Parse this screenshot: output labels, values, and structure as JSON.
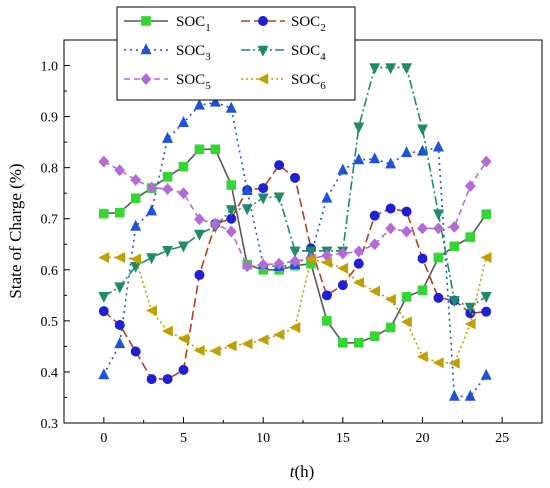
{
  "chart_data": {
    "type": "line",
    "xlabel": "t(h)",
    "ylabel": "State of Charge (%)",
    "xlim": [
      -2.5,
      27.5
    ],
    "ylim": [
      0.3,
      1.05
    ],
    "xticks": [
      0,
      5,
      10,
      15,
      20,
      25
    ],
    "yticks": [
      0.3,
      0.4,
      0.5,
      0.6,
      0.7,
      0.8,
      0.9,
      1.0
    ],
    "grid": false,
    "legend_position": "top-left",
    "x": [
      0,
      1,
      2,
      3,
      4,
      5,
      6,
      7,
      8,
      9,
      10,
      11,
      12,
      13,
      14,
      15,
      16,
      17,
      18,
      19,
      20,
      21,
      22,
      23,
      24
    ],
    "series": [
      {
        "name": "SOC1",
        "label_base": "SOC",
        "label_sub": "1",
        "color": "#595959",
        "marker_color": "#33d633",
        "marker": "square",
        "dash": "solid",
        "values": [
          0.71,
          0.712,
          0.74,
          0.76,
          0.782,
          0.802,
          0.836,
          0.836,
          0.766,
          0.61,
          0.6,
          0.6,
          0.608,
          0.612,
          0.5,
          0.457,
          0.457,
          0.47,
          0.487,
          0.547,
          0.56,
          0.624,
          0.646,
          0.664,
          0.709
        ]
      },
      {
        "name": "SOC2",
        "label_base": "SOC",
        "label_sub": "2",
        "color": "#b04020",
        "marker_color": "#1f1fd6",
        "marker": "circle",
        "dash": "longdash",
        "values": [
          0.519,
          0.492,
          0.44,
          0.386,
          0.386,
          0.404,
          0.59,
          0.69,
          0.7,
          0.756,
          0.76,
          0.805,
          0.78,
          0.642,
          0.55,
          0.57,
          0.612,
          0.706,
          0.72,
          0.714,
          0.622,
          0.545,
          0.54,
          0.515,
          0.518
        ]
      },
      {
        "name": "SOC3",
        "label_base": "SOC",
        "label_sub": "3",
        "color": "#1f52d6",
        "marker_color": "#1f52d6",
        "marker": "triangle-up",
        "dash": "dot",
        "values": [
          0.394,
          0.455,
          0.685,
          0.715,
          0.857,
          0.888,
          0.922,
          0.928,
          0.916,
          0.755,
          0.61,
          0.606,
          0.61,
          0.629,
          0.74,
          0.795,
          0.815,
          0.817,
          0.807,
          0.829,
          0.832,
          0.84,
          0.352,
          0.352,
          0.393
        ]
      },
      {
        "name": "SOC4",
        "label_base": "SOC",
        "label_sub": "4",
        "color": "#1f8a6a",
        "marker_color": "#1f8a6a",
        "marker": "triangle-down",
        "dash": "dashdot",
        "values": [
          0.548,
          0.567,
          0.607,
          0.624,
          0.638,
          0.647,
          0.67,
          0.685,
          0.718,
          0.72,
          0.741,
          0.743,
          0.637,
          0.637,
          0.637,
          0.637,
          0.88,
          0.996,
          0.996,
          0.996,
          0.876,
          0.71,
          0.54,
          0.527,
          0.548
        ]
      },
      {
        "name": "SOC5",
        "label_base": "SOC",
        "label_sub": "5",
        "color": "#b46ad6",
        "marker_color": "#b46ad6",
        "marker": "diamond",
        "dash": "dash",
        "values": [
          0.812,
          0.795,
          0.776,
          0.761,
          0.758,
          0.75,
          0.699,
          0.69,
          0.675,
          0.607,
          0.61,
          0.612,
          0.617,
          0.622,
          0.628,
          0.632,
          0.636,
          0.65,
          0.681,
          0.675,
          0.681,
          0.681,
          0.684,
          0.764,
          0.812
        ]
      },
      {
        "name": "SOC6",
        "label_base": "SOC",
        "label_sub": "6",
        "color": "#b5a000",
        "marker_color": "#c0a000",
        "marker": "triangle-left",
        "dash": "shortdot",
        "values": [
          0.624,
          0.624,
          0.621,
          0.52,
          0.48,
          0.465,
          0.442,
          0.441,
          0.451,
          0.455,
          0.463,
          0.473,
          0.487,
          0.621,
          0.614,
          0.603,
          0.575,
          0.558,
          0.542,
          0.498,
          0.43,
          0.418,
          0.417,
          0.494,
          0.624
        ]
      }
    ]
  }
}
